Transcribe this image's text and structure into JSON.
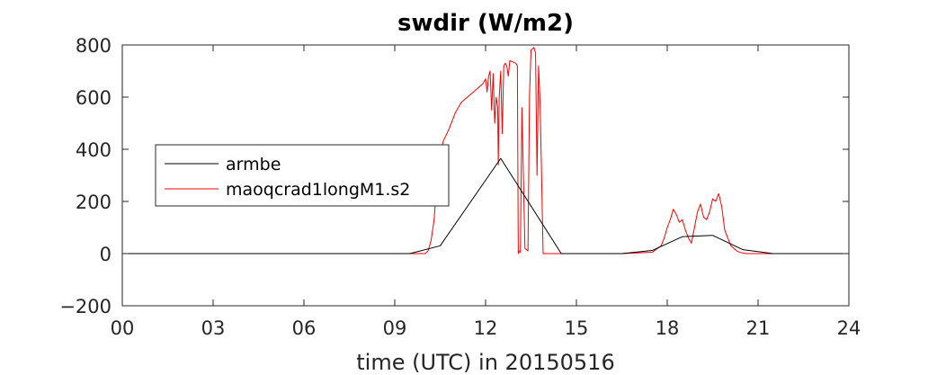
{
  "chart_data": {
    "type": "line",
    "title": "swdir  (W/m2)",
    "xlabel": "time (UTC) in 20150516",
    "ylabel": "",
    "xlim": [
      0,
      24
    ],
    "ylim": [
      -200,
      800
    ],
    "xticks": [
      0,
      3,
      6,
      9,
      12,
      15,
      18,
      21,
      24
    ],
    "xtick_labels": [
      "00",
      "03",
      "06",
      "09",
      "12",
      "15",
      "18",
      "21",
      "24"
    ],
    "yticks": [
      -200,
      0,
      200,
      400,
      600,
      800
    ],
    "ytick_labels": [
      "−200",
      "0",
      "200",
      "400",
      "600",
      "800"
    ],
    "grid": false,
    "legend_position": "left",
    "series": [
      {
        "name": "armbe",
        "color": "#000000",
        "x": [
          0,
          9.5,
          10.5,
          12.5,
          14.5,
          16.5,
          17.5,
          18.5,
          19.5,
          20.5,
          21.5,
          24
        ],
        "y": [
          0,
          0,
          30,
          365,
          0,
          0,
          12,
          65,
          70,
          15,
          0,
          0
        ]
      },
      {
        "name": "maoqcrad1longM1.s2",
        "color": "#ff0000",
        "x": [
          0,
          10.0,
          10.1,
          10.2,
          10.3,
          10.35,
          10.4,
          10.5,
          10.6,
          10.8,
          11.0,
          11.2,
          11.4,
          11.6,
          11.8,
          11.9,
          12.0,
          12.05,
          12.1,
          12.15,
          12.2,
          12.25,
          12.3,
          12.35,
          12.4,
          12.42,
          12.45,
          12.5,
          12.55,
          12.6,
          12.65,
          12.7,
          12.75,
          12.8,
          12.9,
          13.0,
          13.05,
          13.08,
          13.1,
          13.15,
          13.2,
          13.3,
          13.4,
          13.45,
          13.5,
          13.6,
          13.62,
          13.65,
          13.7,
          13.75,
          13.8,
          13.85,
          13.9,
          13.95,
          14.0,
          14.05,
          14.1,
          14.2,
          14.3,
          14.5,
          16.5,
          17.5,
          17.8,
          17.9,
          18.0,
          18.1,
          18.2,
          18.3,
          18.4,
          18.5,
          18.6,
          18.7,
          18.8,
          18.9,
          19.0,
          19.1,
          19.2,
          19.3,
          19.4,
          19.5,
          19.6,
          19.7,
          19.8,
          19.9,
          20.0,
          20.1,
          20.2,
          20.3,
          20.4,
          20.5,
          20.6,
          20.7,
          20.8,
          21.0,
          21.2,
          21.5,
          22.0,
          24
        ],
        "y": [
          0,
          0,
          10,
          50,
          130,
          210,
          290,
          380,
          430,
          480,
          540,
          580,
          600,
          620,
          640,
          650,
          670,
          620,
          680,
          700,
          550,
          690,
          500,
          600,
          560,
          340,
          600,
          700,
          460,
          720,
          730,
          720,
          680,
          740,
          735,
          730,
          720,
          0,
          10,
          5,
          560,
          20,
          10,
          600,
          780,
          790,
          780,
          770,
          300,
          720,
          580,
          300,
          0,
          0,
          0,
          0,
          0,
          0,
          0,
          0,
          0,
          5,
          30,
          60,
          100,
          130,
          170,
          150,
          120,
          130,
          90,
          60,
          40,
          100,
          160,
          190,
          140,
          130,
          160,
          210,
          200,
          230,
          180,
          90,
          60,
          30,
          20,
          10,
          5,
          2,
          0,
          0,
          0,
          0,
          0,
          0,
          0,
          0
        ]
      }
    ]
  }
}
